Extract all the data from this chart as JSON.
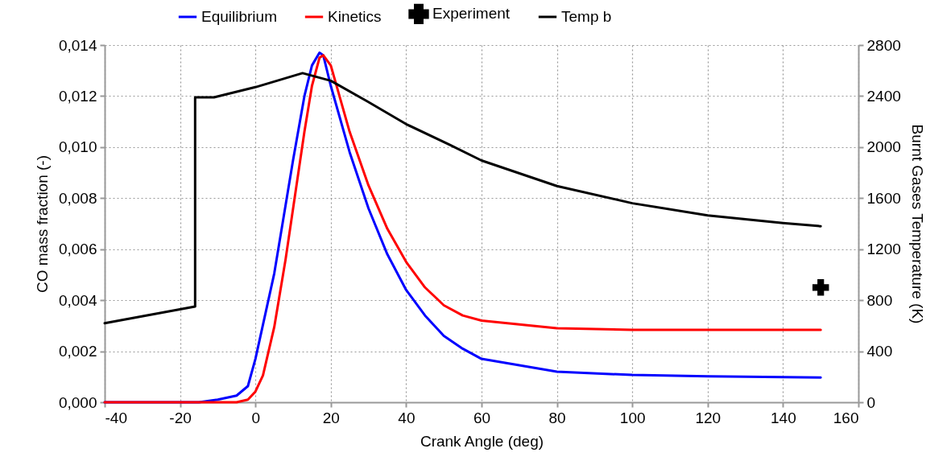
{
  "chart_data": {
    "type": "line",
    "xlabel": "Crank Angle (deg)",
    "ylabel": "CO mass fraction (-)",
    "y2label": "Burnt Gases Temperature (K)",
    "xlim": [
      -40,
      160
    ],
    "xticks": [
      -40,
      -20,
      0,
      20,
      40,
      60,
      80,
      100,
      120,
      140,
      160
    ],
    "ylim": [
      0,
      0.014
    ],
    "yticks": [
      {
        "value": 0,
        "label": "0,000"
      },
      {
        "value": 0.002,
        "label": "0,002"
      },
      {
        "value": 0.004,
        "label": "0,004"
      },
      {
        "value": 0.006,
        "label": "0,006"
      },
      {
        "value": 0.008,
        "label": "0,008"
      },
      {
        "value": 0.01,
        "label": "0,010"
      },
      {
        "value": 0.012,
        "label": "0,012"
      },
      {
        "value": 0.014,
        "label": "0,014"
      }
    ],
    "y2lim": [
      0,
      2800
    ],
    "y2ticks": [
      0,
      400,
      800,
      1200,
      1600,
      2000,
      2400,
      2800
    ],
    "grid": true,
    "legend": "top",
    "series": [
      {
        "name": "Equilibrium",
        "color": "#0000ff",
        "x": [
          -40,
          -20,
          -15,
          -10,
          -5,
          -2,
          0,
          5,
          10,
          13,
          15,
          17,
          18,
          20,
          25,
          30,
          35,
          40,
          45,
          50,
          55,
          60,
          80,
          100,
          120,
          150
        ],
        "values": [
          0,
          0,
          0,
          0.0001,
          0.00026,
          0.00063,
          0.0017,
          0.00505,
          0.0095,
          0.012,
          0.0132,
          0.0137,
          0.0136,
          0.0124,
          0.0098,
          0.0076,
          0.0058,
          0.0044,
          0.0034,
          0.0026,
          0.0021,
          0.0017,
          0.0012,
          0.00107,
          0.00102,
          0.00097
        ]
      },
      {
        "name": "Kinetics",
        "color": "#ff0000",
        "x": [
          -40,
          -20,
          -5,
          -2,
          0,
          2,
          5,
          8,
          10,
          13,
          15,
          17,
          18,
          20,
          25,
          30,
          35,
          40,
          45,
          50,
          55,
          60,
          80,
          100,
          120,
          150
        ],
        "values": [
          0,
          0,
          0,
          0.0001,
          0.00042,
          0.00105,
          0.00295,
          0.0056,
          0.0076,
          0.0106,
          0.0124,
          0.0135,
          0.0136,
          0.0132,
          0.0106,
          0.0085,
          0.0068,
          0.0055,
          0.0045,
          0.0038,
          0.0034,
          0.0032,
          0.0029,
          0.00284,
          0.00284,
          0.00284
        ]
      },
      {
        "name": "Experiment",
        "type": "scatter",
        "color": "#000000",
        "marker": "cross",
        "x": [
          150
        ],
        "values": [
          0.0045
        ]
      },
      {
        "name": "Temp b",
        "color": "#000000",
        "axis": "y2",
        "x": [
          -40,
          -16,
          -16,
          -11,
          0,
          12.5,
          20,
          29.6,
          40,
          51.4,
          60,
          80,
          100,
          120,
          140,
          150
        ],
        "values": [
          620,
          750,
          2390,
          2390,
          2470,
          2580,
          2520,
          2360,
          2180,
          2020,
          1895,
          1695,
          1560,
          1465,
          1405,
          1380
        ]
      }
    ]
  }
}
